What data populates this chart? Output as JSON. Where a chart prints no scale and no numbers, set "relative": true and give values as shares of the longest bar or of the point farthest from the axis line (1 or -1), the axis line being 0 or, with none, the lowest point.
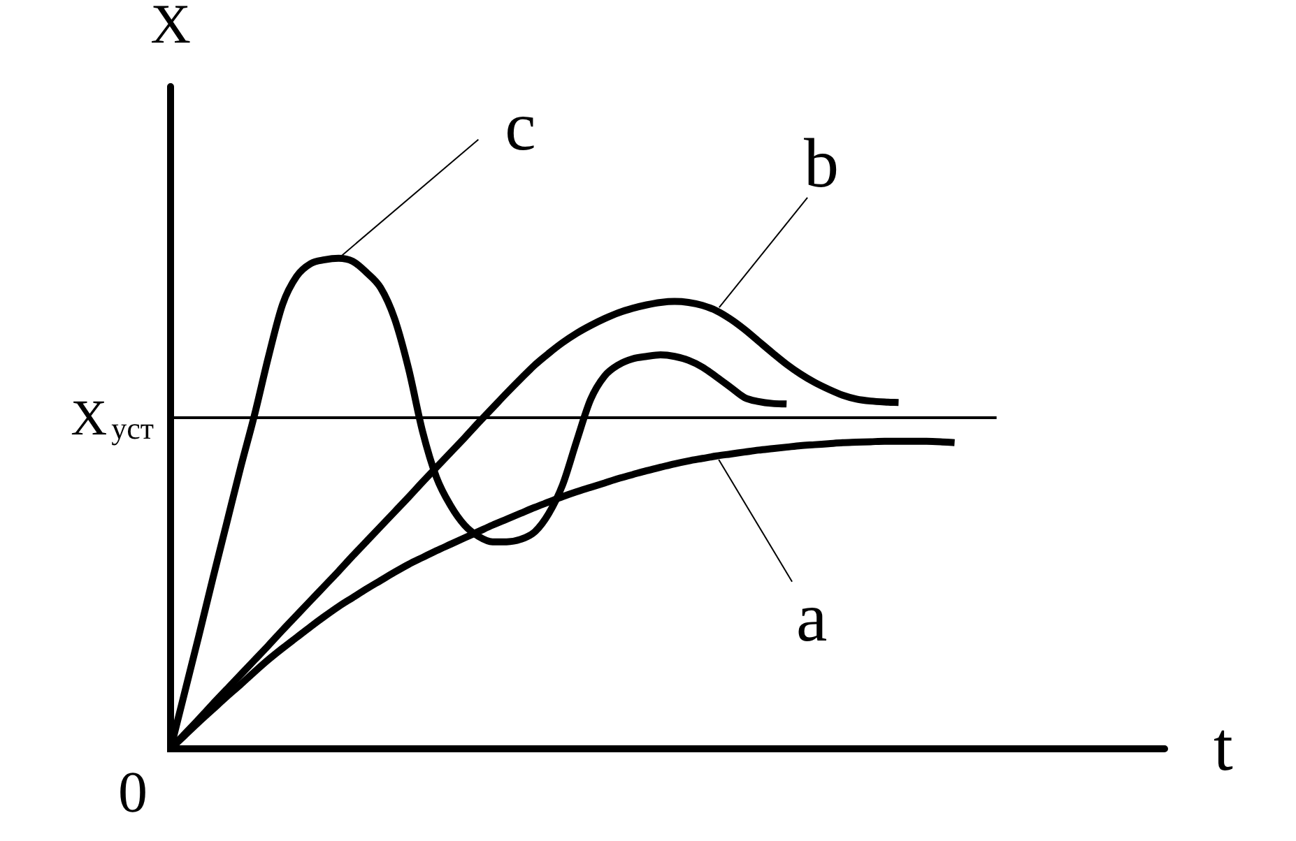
{
  "chart_data": {
    "type": "line",
    "relative": true,
    "xlabel": "t",
    "ylabel": "X",
    "annotations": [
      "0"
    ],
    "marker": "none",
    "categories": [
      null,
      null,
      null,
      null,
      null,
      null,
      null,
      null,
      null,
      null,
      null,
      null,
      null,
      null,
      null,
      null,
      null,
      null,
      null,
      null,
      null,
      null,
      null,
      null,
      null,
      null,
      null,
      null,
      null,
      null,
      null,
      null,
      null,
      null,
      null,
      null,
      null,
      null,
      null,
      null,
      null,
      null,
      null,
      null,
      null,
      null,
      null,
      null,
      null,
      null,
      null,
      null,
      null,
      null,
      null,
      null,
      null,
      null,
      null,
      null,
      null,
      null,
      null,
      null,
      null,
      null,
      null,
      null,
      null,
      null,
      null,
      null
    ],
    "ref_lines": [
      {
        "axis": "y",
        "value": 0.675,
        "label": "X$_{уст}$",
        "color": "#000000"
      }
    ],
    "series": [
      {
        "name": "a",
        "color": "#000000",
        "values": [
          0,
          0.027,
          0.054,
          0.08,
          0.106,
          0.131,
          0.157,
          0.182,
          0.205,
          0.227,
          0.249,
          0.27,
          0.29,
          0.308,
          0.326,
          0.343,
          0.36,
          0.376,
          0.39,
          0.404,
          0.417,
          0.43,
          0.443,
          0.456,
          0.468,
          0.48,
          0.492,
          0.503,
          0.514,
          0.524,
          0.533,
          0.542,
          0.551,
          0.559,
          0.567,
          0.574,
          0.581,
          0.587,
          0.592,
          0.597,
          0.601,
          0.605,
          0.609,
          0.612,
          0.615,
          0.618,
          0.62,
          0.622,
          0.624,
          0.625,
          0.626,
          0.627,
          0.627,
          0.627,
          0.627,
          0.626,
          0.624,
          null,
          null,
          null,
          null,
          null,
          null,
          null,
          null,
          null,
          null,
          null,
          null,
          null,
          null,
          null
        ]
      },
      {
        "name": "b",
        "color": "#000000",
        "values": [
          0,
          0.03,
          0.06,
          0.091,
          0.121,
          0.151,
          0.181,
          0.211,
          0.242,
          0.272,
          0.302,
          0.332,
          0.362,
          0.393,
          0.423,
          0.453,
          0.483,
          0.513,
          0.544,
          0.574,
          0.604,
          0.634,
          0.665,
          0.695,
          0.725,
          0.754,
          0.782,
          0.806,
          0.828,
          0.847,
          0.863,
          0.877,
          0.889,
          0.898,
          0.905,
          0.91,
          0.912,
          0.91,
          0.904,
          0.893,
          0.876,
          0.855,
          0.831,
          0.807,
          0.784,
          0.764,
          0.747,
          0.733,
          0.721,
          0.713,
          0.709,
          0.707,
          0.706,
          null,
          null,
          null,
          null,
          null,
          null,
          null,
          null,
          null,
          null,
          null,
          null,
          null,
          null,
          null,
          null,
          null,
          null,
          null
        ]
      },
      {
        "name": "c",
        "color": "#000000",
        "values": [
          0,
          0.114,
          0.228,
          0.345,
          0.459,
          0.573,
          0.681,
          0.8,
          0.906,
          0.963,
          0.989,
          0.997,
          1.0,
          0.994,
          0.971,
          0.94,
          0.877,
          0.775,
          0.647,
          0.553,
          0.496,
          0.456,
          0.433,
          0.422,
          0.422,
          0.427,
          0.442,
          0.479,
          0.538,
          0.627,
          0.712,
          0.76,
          0.783,
          0.795,
          0.8,
          0.803,
          0.8,
          0.792,
          0.778,
          0.758,
          0.737,
          0.716,
          0.708,
          0.704,
          0.703,
          null,
          null,
          null,
          null,
          null,
          null,
          null,
          null,
          null,
          null,
          null,
          null,
          null,
          null,
          null,
          null,
          null,
          null,
          null,
          null,
          null,
          null,
          null,
          null,
          null,
          null,
          null
        ]
      }
    ]
  }
}
